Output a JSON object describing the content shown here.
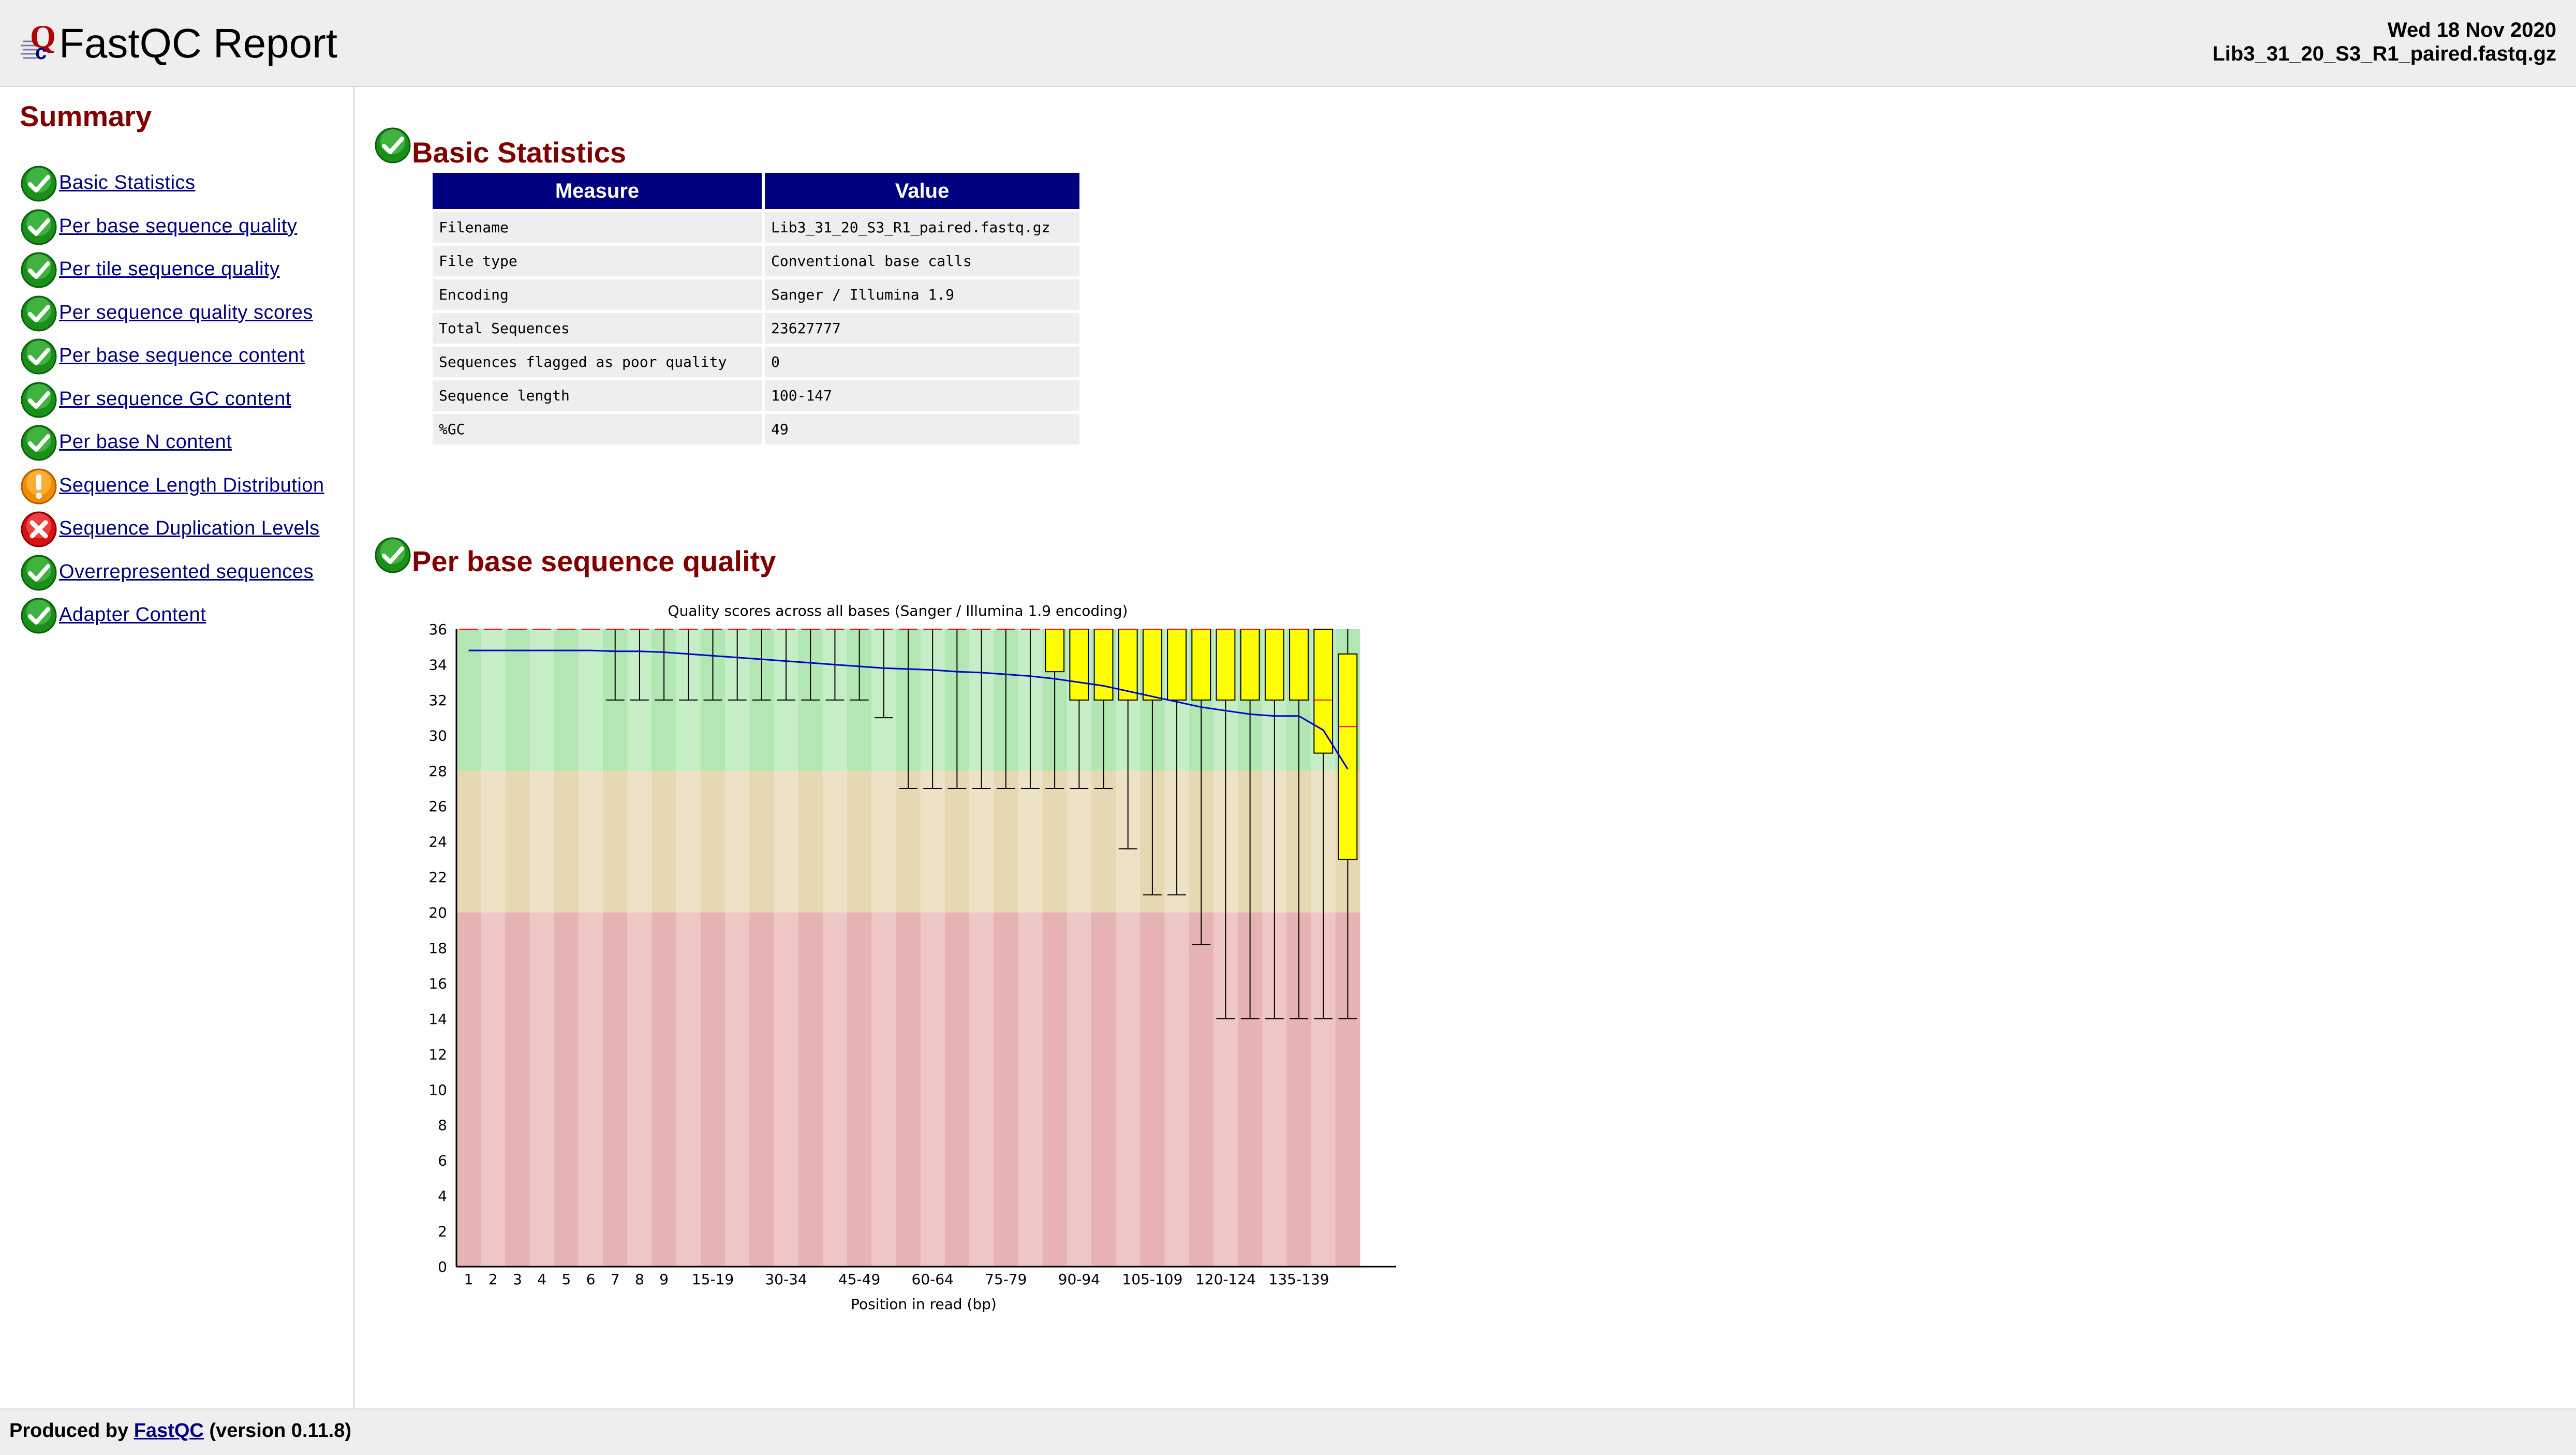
{
  "header": {
    "title": "FastQC Report",
    "date": "Wed 18 Nov 2020",
    "filename": "Lib3_31_20_S3_R1_paired.fastq.gz"
  },
  "summary": {
    "title": "Summary",
    "items": [
      {
        "label": "Basic Statistics",
        "status": "pass"
      },
      {
        "label": "Per base sequence quality",
        "status": "pass"
      },
      {
        "label": "Per tile sequence quality",
        "status": "pass"
      },
      {
        "label": "Per sequence quality scores",
        "status": "pass"
      },
      {
        "label": "Per base sequence content",
        "status": "pass"
      },
      {
        "label": "Per sequence GC content",
        "status": "pass"
      },
      {
        "label": "Per base N content",
        "status": "pass"
      },
      {
        "label": "Sequence Length Distribution",
        "status": "warn"
      },
      {
        "label": "Sequence Duplication Levels",
        "status": "fail"
      },
      {
        "label": "Overrepresented sequences",
        "status": "pass"
      },
      {
        "label": "Adapter Content",
        "status": "pass"
      }
    ]
  },
  "basic_stats": {
    "title": "Basic Statistics",
    "headers": [
      "Measure",
      "Value"
    ],
    "rows": [
      [
        "Filename",
        "Lib3_31_20_S3_R1_paired.fastq.gz"
      ],
      [
        "File type",
        "Conventional base calls"
      ],
      [
        "Encoding",
        "Sanger / Illumina 1.9"
      ],
      [
        "Total Sequences",
        "23627777"
      ],
      [
        "Sequences flagged as poor quality",
        "0"
      ],
      [
        "Sequence length",
        "100-147"
      ],
      [
        "%GC",
        "49"
      ]
    ]
  },
  "per_base_quality": {
    "title": "Per base sequence quality"
  },
  "chart_data": {
    "type": "box",
    "title": "Quality scores across all bases (Sanger / Illumina 1.9 encoding)",
    "xlabel": "Position in read (bp)",
    "ylabel": "",
    "ylim": [
      0,
      36
    ],
    "yticks": [
      0,
      2,
      4,
      6,
      8,
      10,
      12,
      14,
      16,
      18,
      20,
      22,
      24,
      26,
      28,
      30,
      32,
      34,
      36
    ],
    "categories": [
      "1",
      "2",
      "3",
      "4",
      "5",
      "6",
      "7",
      "8",
      "9",
      "10-14",
      "15-19",
      "20-24",
      "25-29",
      "30-34",
      "35-39",
      "40-44",
      "45-49",
      "50-54",
      "55-59",
      "60-64",
      "65-69",
      "70-74",
      "75-79",
      "80-84",
      "85-89",
      "90-94",
      "95-99",
      "100-104",
      "105-109",
      "110-114",
      "115-119",
      "120-124",
      "125-129",
      "130-134",
      "135-139",
      "140-144",
      "145-147"
    ],
    "xtick_labels": [
      "1",
      "2",
      "3",
      "4",
      "5",
      "6",
      "7",
      "8",
      "9",
      "15-19",
      "30-34",
      "45-49",
      "60-64",
      "75-79",
      "90-94",
      "105-109",
      "120-124",
      "135-139"
    ],
    "zones": [
      {
        "name": "good",
        "from": 28,
        "to": 36,
        "colors": [
          "#b2e6b2",
          "#c6eec6"
        ]
      },
      {
        "name": "reasonable",
        "from": 20,
        "to": 28,
        "colors": [
          "#e6d8b2",
          "#eee2c6"
        ]
      },
      {
        "name": "poor",
        "from": 0,
        "to": 20,
        "colors": [
          "#e6b2b2",
          "#eec6c6"
        ]
      }
    ],
    "series": [
      {
        "name": "Mean",
        "color": "#0000cc",
        "values": [
          34.8,
          34.8,
          34.8,
          34.8,
          34.8,
          34.8,
          34.75,
          34.75,
          34.7,
          34.6,
          34.5,
          34.4,
          34.3,
          34.2,
          34.1,
          34.0,
          33.9,
          33.8,
          33.75,
          33.7,
          33.6,
          33.55,
          33.45,
          33.35,
          33.2,
          33.0,
          32.8,
          32.5,
          32.2,
          31.9,
          31.6,
          31.4,
          31.2,
          31.1,
          31.1,
          30.3,
          28.1
        ]
      },
      {
        "name": "Median",
        "color": "#ff0000",
        "values": [
          36,
          36,
          36,
          36,
          36,
          36,
          36,
          36,
          36,
          36,
          36,
          36,
          36,
          36,
          36,
          36,
          36,
          36,
          36,
          36,
          36,
          36,
          36,
          36,
          36,
          36,
          36,
          36,
          36,
          36,
          36,
          36,
          36,
          36,
          36,
          32,
          30.5
        ]
      },
      {
        "name": "Q1",
        "values": [
          36,
          36,
          36,
          36,
          36,
          36,
          36,
          36,
          36,
          36,
          36,
          36,
          36,
          36,
          36,
          36,
          36,
          36,
          36,
          36,
          36,
          36,
          36,
          36,
          33.6,
          32,
          32,
          32,
          32,
          32,
          32,
          32,
          32,
          32,
          32,
          29,
          23
        ]
      },
      {
        "name": "Q3",
        "values": [
          36,
          36,
          36,
          36,
          36,
          36,
          36,
          36,
          36,
          36,
          36,
          36,
          36,
          36,
          36,
          36,
          36,
          36,
          36,
          36,
          36,
          36,
          36,
          36,
          36,
          36,
          36,
          36,
          36,
          36,
          36,
          36,
          36,
          36,
          36,
          36,
          34.6
        ]
      },
      {
        "name": "P10",
        "values": [
          36,
          36,
          36,
          36,
          36,
          36,
          32,
          32,
          32,
          32,
          32,
          32,
          32,
          32,
          32,
          32,
          32,
          31,
          27,
          27,
          27,
          27,
          27,
          27,
          27,
          27,
          27,
          23.6,
          21,
          21,
          18.2,
          14,
          14,
          14,
          14,
          14,
          14
        ]
      },
      {
        "name": "P90",
        "values": [
          36,
          36,
          36,
          36,
          36,
          36,
          36,
          36,
          36,
          36,
          36,
          36,
          36,
          36,
          36,
          36,
          36,
          36,
          36,
          36,
          36,
          36,
          36,
          36,
          36,
          36,
          36,
          36,
          36,
          36,
          36,
          36,
          36,
          36,
          36,
          36,
          36
        ]
      }
    ]
  },
  "footer": {
    "produced_by": "Produced by",
    "link": "FastQC",
    "version": "(version 0.11.8)"
  }
}
